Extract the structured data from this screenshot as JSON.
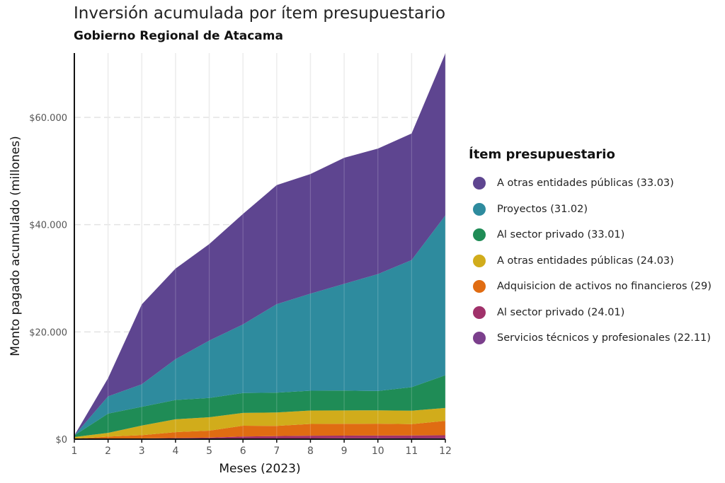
{
  "chart_data": {
    "type": "area",
    "stacked": true,
    "title": "Inversión acumulada por ítem presupuestario",
    "subtitle": "Gobierno Regional de Atacama",
    "xlabel": "Meses (2023)",
    "ylabel": "Monto pagado acumulado (millones)",
    "x": [
      1,
      2,
      3,
      4,
      5,
      6,
      7,
      8,
      9,
      10,
      11,
      12
    ],
    "xlim": [
      1,
      12
    ],
    "ylim": [
      0,
      72000
    ],
    "y_ticks": [
      0,
      20000,
      40000,
      60000
    ],
    "y_tick_labels": [
      "$0",
      "$20.000",
      "$40.000",
      "$60.000"
    ],
    "x_tick_labels": [
      "1",
      "2",
      "3",
      "4",
      "5",
      "6",
      "7",
      "8",
      "9",
      "10",
      "11",
      "12"
    ],
    "grid": true,
    "legend_title": "Ítem presupuestario",
    "legend_position": "right",
    "series": [
      {
        "name": "Servicios técnicos y profesionales (22.11)",
        "color": "#7b3f8c",
        "values": [
          0,
          20,
          40,
          60,
          80,
          100,
          120,
          140,
          160,
          180,
          200,
          220
        ]
      },
      {
        "name": "Al sector privado (24.01)",
        "color": "#a0316a",
        "values": [
          0,
          50,
          100,
          150,
          200,
          400,
          450,
          500,
          500,
          500,
          500,
          500
        ]
      },
      {
        "name": "Adquisicion de activos no financieros (29)",
        "color": "#e06c12",
        "values": [
          100,
          400,
          600,
          1100,
          1300,
          2000,
          1900,
          2200,
          2200,
          2200,
          2100,
          2700
        ]
      },
      {
        "name": "A otras entidades públicas (24.03)",
        "color": "#d1ac1b",
        "values": [
          300,
          700,
          1800,
          2400,
          2500,
          2400,
          2500,
          2500,
          2500,
          2500,
          2500,
          2400
        ]
      },
      {
        "name": "Al sector privado (33.01)",
        "color": "#1f8c56",
        "values": [
          300,
          3600,
          3500,
          3600,
          3600,
          3700,
          3700,
          3700,
          3700,
          3600,
          4400,
          6100
        ]
      },
      {
        "name": "Proyectos (31.02)",
        "color": "#2e8b9e",
        "values": [
          0,
          3200,
          4200,
          7600,
          10700,
          12800,
          16500,
          18100,
          19900,
          21800,
          23700,
          29800
        ]
      },
      {
        "name": "A otras entidades públicas (33.03)",
        "color": "#5e4590",
        "values": [
          0,
          3400,
          14900,
          16900,
          18000,
          20600,
          22200,
          22300,
          23500,
          23400,
          23600,
          30200
        ]
      }
    ]
  }
}
